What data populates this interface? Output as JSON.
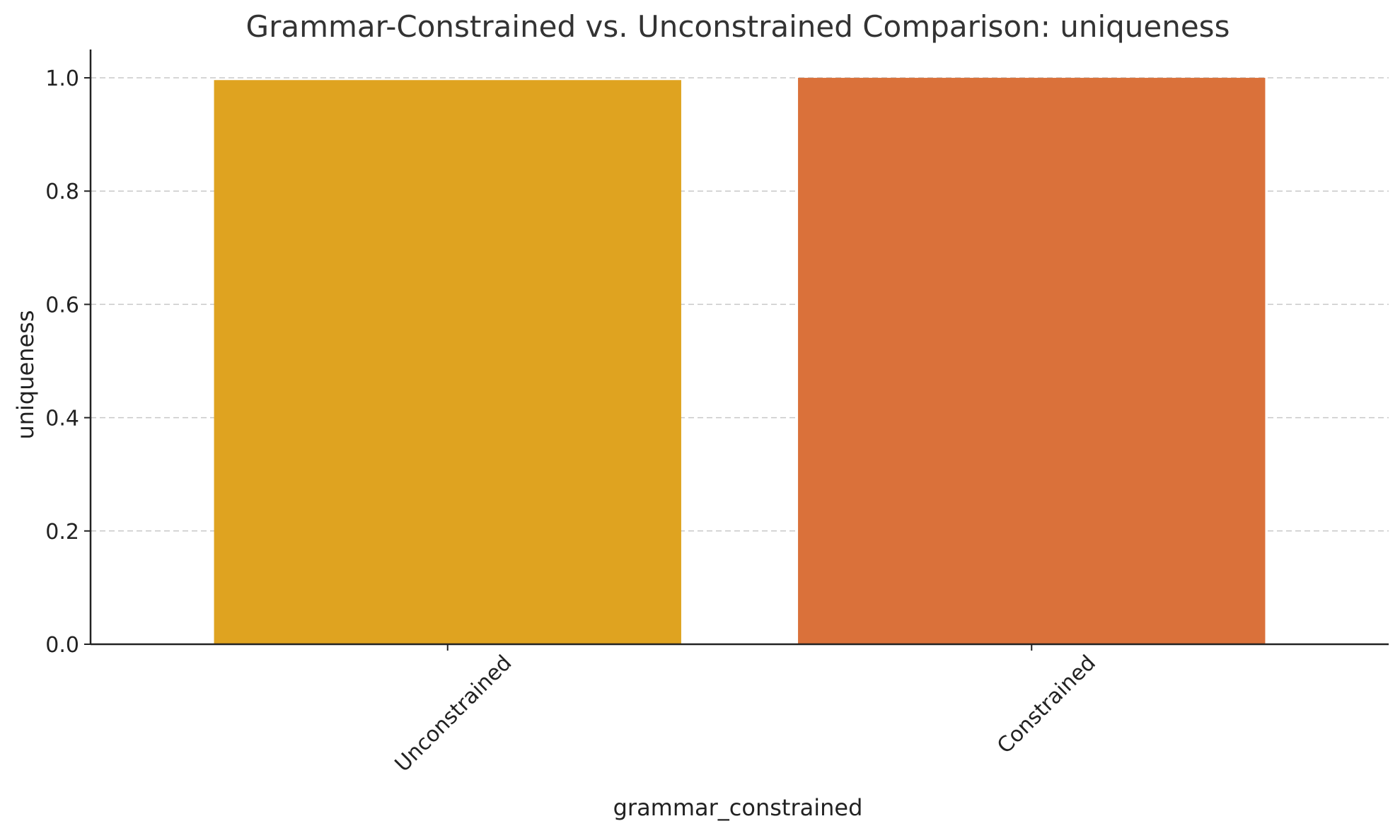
{
  "chart_data": {
    "type": "bar",
    "title": "Grammar-Constrained vs. Unconstrained Comparison: uniqueness",
    "xlabel": "grammar_constrained",
    "ylabel": "uniqueness",
    "categories": [
      "Unconstrained",
      "Constrained"
    ],
    "values": [
      0.996,
      1.0
    ],
    "colors": [
      "#DFA320",
      "#DA713A"
    ],
    "ylim": [
      0,
      1.05
    ],
    "yticks": [
      0.0,
      0.2,
      0.4,
      0.6,
      0.8,
      1.0
    ],
    "ytick_labels": [
      "0.0",
      "0.2",
      "0.4",
      "0.6",
      "0.8",
      "1.0"
    ],
    "grid": "horizontal-dashed",
    "legend": "none"
  }
}
